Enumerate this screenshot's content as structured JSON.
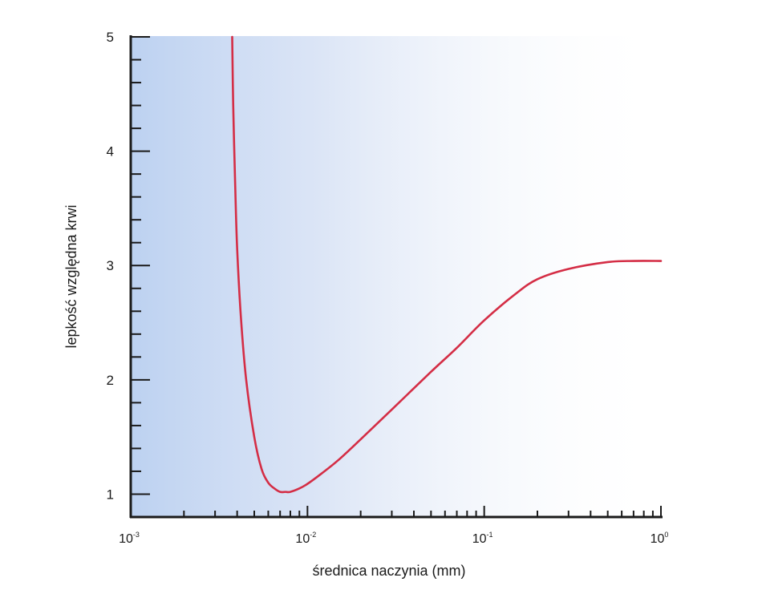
{
  "chart_data": {
    "type": "line",
    "title": "",
    "xlabel": "średnica naczynia (mm)",
    "ylabel": "lepkość względna krwi",
    "x_scale": "log",
    "xlim": [
      0.001,
      1
    ],
    "ylim": [
      0.8,
      5
    ],
    "x_ticks": [
      {
        "value": 0.001,
        "base": "10",
        "exp": "-3"
      },
      {
        "value": 0.01,
        "base": "10",
        "exp": "-2"
      },
      {
        "value": 0.1,
        "base": "10",
        "exp": "-1"
      },
      {
        "value": 1,
        "base": "10",
        "exp": "0"
      }
    ],
    "y_ticks": [
      "1",
      "2",
      "3",
      "4",
      "5"
    ],
    "grid": false,
    "legend": "none",
    "series": [
      {
        "color": "#d42d45",
        "x": [
          0.00375,
          0.0038,
          0.0039,
          0.004,
          0.0042,
          0.0045,
          0.005,
          0.0055,
          0.006,
          0.0065,
          0.007,
          0.0075,
          0.008,
          0.009,
          0.01,
          0.012,
          0.015,
          0.02,
          0.03,
          0.05,
          0.07,
          0.1,
          0.15,
          0.2,
          0.3,
          0.5,
          0.7,
          1.0
        ],
        "y": [
          5.0,
          4.4,
          3.7,
          3.15,
          2.55,
          2.0,
          1.5,
          1.22,
          1.1,
          1.05,
          1.02,
          1.02,
          1.02,
          1.05,
          1.09,
          1.18,
          1.3,
          1.48,
          1.74,
          2.07,
          2.28,
          2.52,
          2.75,
          2.88,
          2.97,
          3.03,
          3.04,
          3.04
        ]
      }
    ]
  },
  "colors": {
    "background_tint": "#c6d9f1",
    "axis": "#1a1a1a",
    "curve": "#d42d45"
  }
}
